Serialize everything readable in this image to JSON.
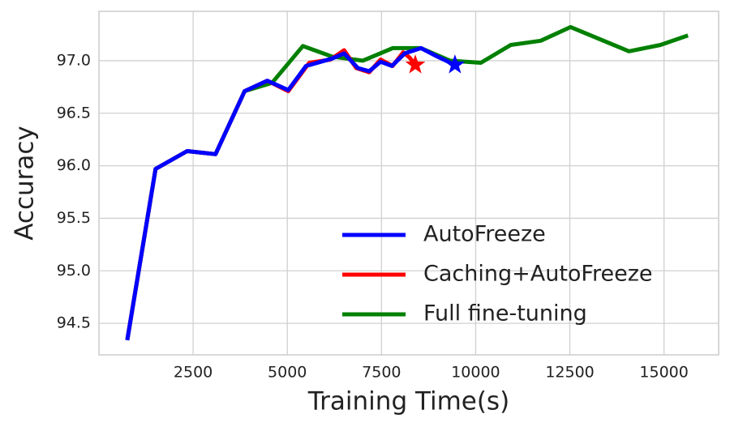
{
  "chart_data": {
    "type": "line",
    "x_label": "Training Time(s)",
    "y_label": "Accuracy",
    "xlim": [
      0,
      16450
    ],
    "ylim": [
      94.2,
      97.47
    ],
    "xticks": [
      2500,
      5000,
      7500,
      10000,
      12500,
      15000
    ],
    "yticks": [
      {
        "value": 94.5,
        "label": "94.5"
      },
      {
        "value": 95.0,
        "label": "95.0"
      },
      {
        "value": 95.5,
        "label": "95.5"
      },
      {
        "value": 96.0,
        "label": "96.0"
      },
      {
        "value": 96.5,
        "label": "96.5"
      },
      {
        "value": 97.0,
        "label": "97.0"
      }
    ],
    "grid": true,
    "legend": "lower right",
    "series": [
      {
        "name": "AutoFreeze",
        "color": "#0000ff",
        "end_marker": "star",
        "x": [
          752,
          1503,
          2341,
          3093,
          3866,
          4467,
          5026,
          5498,
          6186,
          6508,
          6873,
          7174,
          7475,
          7775,
          8118,
          8548,
          8978,
          9450
        ],
        "values": [
          94.34,
          95.97,
          96.14,
          96.11,
          96.71,
          96.81,
          96.72,
          96.95,
          97.02,
          97.07,
          96.93,
          96.9,
          96.99,
          96.95,
          97.07,
          97.12,
          97.04,
          96.96
        ]
      },
      {
        "name": "Caching+AutoFreeze",
        "color": "#ff0000",
        "end_marker": "star",
        "x": [
          752,
          1503,
          2341,
          3093,
          3866,
          4467,
          5026,
          5584,
          6143,
          6508,
          6830,
          7174,
          7475,
          7796,
          8075,
          8247,
          8398
        ],
        "values": [
          94.34,
          95.97,
          96.14,
          96.11,
          96.71,
          96.81,
          96.71,
          96.98,
          97.01,
          97.1,
          96.93,
          96.89,
          97.01,
          96.95,
          97.08,
          97.03,
          96.96
        ]
      },
      {
        "name": "Full fine-tuning",
        "color": "#008000",
        "x": [
          752,
          1503,
          2341,
          3093,
          3866,
          4596,
          5412,
          6186,
          7002,
          7796,
          8548,
          9321,
          10137,
          10932,
          11727,
          12521,
          14068,
          14905,
          15636
        ],
        "values": [
          94.34,
          95.97,
          96.14,
          96.11,
          96.71,
          96.79,
          97.14,
          97.04,
          97.0,
          97.12,
          97.12,
          97.0,
          96.98,
          97.15,
          97.19,
          97.32,
          97.09,
          97.15,
          97.24
        ]
      }
    ]
  }
}
